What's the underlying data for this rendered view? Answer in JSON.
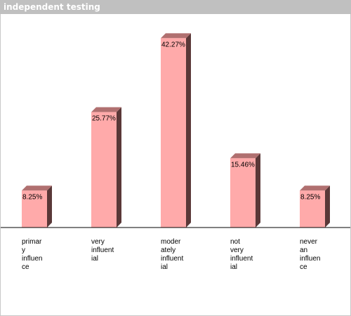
{
  "window": {
    "title": "independent testing"
  },
  "colors": {
    "bar_front": "#ffaaaa",
    "bar_top": "#b07070",
    "bar_side": "#5a3838",
    "axis": "#000000"
  },
  "chart_data": {
    "type": "bar",
    "categories": [
      "primary influence",
      "very influential",
      "moderately influential",
      "not very influential",
      "never an influence"
    ],
    "category_lines": [
      [
        "primar",
        "y",
        "influen",
        "ce"
      ],
      [
        "very",
        "influent",
        "ial"
      ],
      [
        "moder",
        "ately",
        "influent",
        "ial"
      ],
      [
        "not",
        "very",
        "influent",
        "ial"
      ],
      [
        "never",
        "an",
        "influen",
        "ce"
      ]
    ],
    "values": [
      8.25,
      25.77,
      42.27,
      15.46,
      8.25
    ],
    "data_labels": [
      "8.25%",
      "25.77%",
      "42.27%",
      "15.46%",
      "8.25%"
    ],
    "title": "independent testing",
    "xlabel": "",
    "ylabel": "",
    "ylim": [
      0,
      45
    ],
    "grid": false,
    "legend": "none"
  }
}
